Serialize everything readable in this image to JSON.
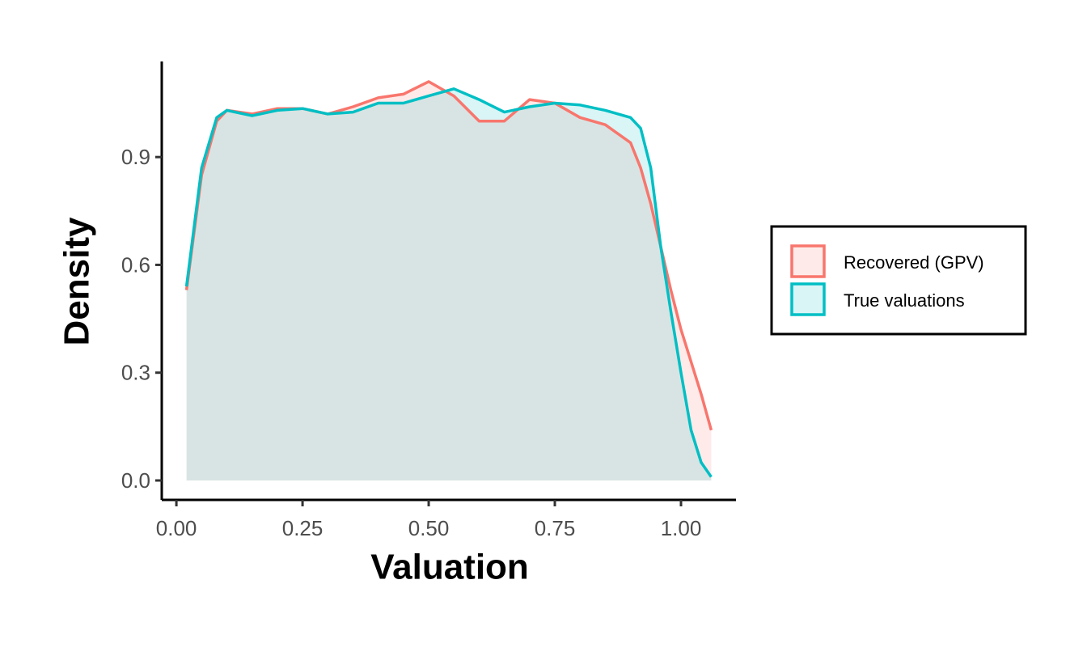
{
  "chart_data": {
    "type": "area",
    "x_label": "Valuation",
    "y_label": "Density",
    "x": [
      0.02,
      0.05,
      0.08,
      0.1,
      0.15,
      0.2,
      0.25,
      0.3,
      0.35,
      0.4,
      0.45,
      0.5,
      0.55,
      0.6,
      0.65,
      0.7,
      0.75,
      0.8,
      0.85,
      0.9,
      0.92,
      0.94,
      0.96,
      0.98,
      1.0,
      1.02,
      1.04,
      1.06
    ],
    "series": [
      {
        "name": "Recovered (GPV)",
        "color": "#F8766D",
        "values": [
          0.53,
          0.85,
          1.0,
          1.03,
          1.02,
          1.035,
          1.035,
          1.02,
          1.04,
          1.065,
          1.075,
          1.11,
          1.07,
          1.0,
          1.0,
          1.06,
          1.05,
          1.01,
          0.99,
          0.94,
          0.87,
          0.77,
          0.65,
          0.53,
          0.42,
          0.33,
          0.24,
          0.14
        ]
      },
      {
        "name": "True valuations",
        "color": "#00BFC4",
        "values": [
          0.54,
          0.87,
          1.01,
          1.03,
          1.015,
          1.03,
          1.035,
          1.02,
          1.025,
          1.05,
          1.05,
          1.07,
          1.09,
          1.06,
          1.025,
          1.04,
          1.05,
          1.045,
          1.03,
          1.01,
          0.98,
          0.87,
          0.65,
          0.47,
          0.3,
          0.14,
          0.05,
          0.01
        ]
      }
    ],
    "xlim": [
      -0.029,
      1.109
    ],
    "ylim": [
      -0.054,
      1.166
    ],
    "xticks": [
      {
        "value": 0,
        "label": "0.00"
      },
      {
        "value": 0.25,
        "label": "0.25"
      },
      {
        "value": 0.5,
        "label": "0.50"
      },
      {
        "value": 0.75,
        "label": "0.75"
      },
      {
        "value": 1,
        "label": "1.00"
      }
    ],
    "yticks": [
      {
        "value": 0,
        "label": "0.0"
      },
      {
        "value": 0.3,
        "label": "0.3"
      },
      {
        "value": 0.6,
        "label": "0.6"
      },
      {
        "value": 0.9,
        "label": "0.9"
      }
    ],
    "grid": false,
    "legend": "right"
  }
}
